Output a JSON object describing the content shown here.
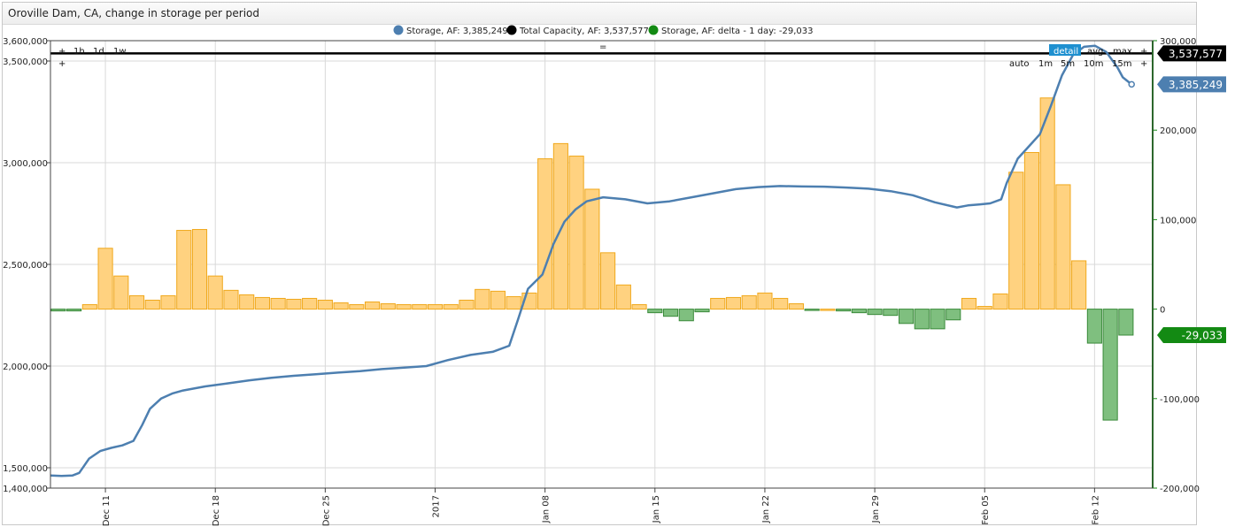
{
  "widget": {
    "title": "Oroville Dam, CA, change in storage per period"
  },
  "controls": {
    "left": [
      "+",
      "1h",
      "1d",
      "1w"
    ],
    "left_row2": "+",
    "center": "=",
    "right_row1": [
      "detail",
      "avg",
      "max",
      "+"
    ],
    "right_row2": [
      "auto",
      "1m",
      "5m",
      "10m",
      "15m",
      "+"
    ]
  },
  "colors": {
    "storage": "#4d7fb0",
    "capacity": "#000000",
    "delta_pos": "#ffd280",
    "delta_pos_border": "#f0a81c",
    "delta_neg": "#7fbf7f",
    "delta_neg_border": "#3a8a3a",
    "right_axis": "#138a13"
  },
  "chart_data": {
    "type": "bar",
    "x_tick_labels": [
      "Dec 11",
      "Dec 18",
      "Dec 25",
      "2017",
      "Jan 08",
      "Jan 15",
      "Jan 22",
      "Jan 29",
      "Feb 05",
      "Feb 12"
    ],
    "left_axis": {
      "ylim": [
        1400000,
        3600000
      ],
      "tick_labels": [
        "3,600,000",
        "3,500,000",
        "3,000,000",
        "2,500,000",
        "2,000,000",
        "1,500,000",
        "1,400,000"
      ]
    },
    "right_axis": {
      "ylim": [
        -200000,
        300000
      ],
      "tick_labels": [
        "300,000",
        "200,000",
        "100,000",
        "0",
        "-100,000",
        "-200,000"
      ]
    },
    "legend": [
      {
        "name": "Storage, AF: 3,385,249",
        "color": "#4d7fb0"
      },
      {
        "name": "Total Capacity, AF: 3,537,577",
        "color": "#000000"
      },
      {
        "name": "Storage, AF: delta - 1 day: -29,033",
        "color": "#138a13"
      }
    ],
    "badges": {
      "capacity": "3,537,577",
      "storage": "3,385,249",
      "delta": "-29,033"
    },
    "capacity_value": 3537577,
    "delta_daily": [
      -2000,
      -2000,
      5000,
      68000,
      37000,
      15000,
      10000,
      15000,
      88000,
      89000,
      37000,
      21000,
      16000,
      13000,
      12000,
      11000,
      12000,
      10000,
      7000,
      5000,
      8000,
      6000,
      5000,
      5000,
      5000,
      5000,
      10000,
      22000,
      20000,
      14000,
      18000,
      168000,
      185000,
      171000,
      134000,
      63000,
      27000,
      5000,
      -4000,
      -8000,
      -13000,
      -3000,
      12000,
      13000,
      15000,
      18000,
      12000,
      6000,
      -1000,
      0,
      -2000,
      -4000,
      -6000,
      -7000,
      -16000,
      -22000,
      -22000,
      -12000,
      12000,
      3000,
      17000,
      153000,
      175000,
      236000,
      139000,
      54000,
      -38000,
      -124000,
      -29033
    ],
    "storage_series": [
      [
        0,
        1462000
      ],
      [
        1,
        1460000
      ],
      [
        2,
        1462000
      ],
      [
        2.6,
        1475000
      ],
      [
        3.5,
        1545000
      ],
      [
        4.5,
        1582000
      ],
      [
        5.5,
        1598000
      ],
      [
        6.5,
        1610000
      ],
      [
        7.5,
        1632000
      ],
      [
        8.3,
        1710000
      ],
      [
        9.0,
        1790000
      ],
      [
        10,
        1840000
      ],
      [
        11,
        1865000
      ],
      [
        12,
        1880000
      ],
      [
        14,
        1900000
      ],
      [
        16,
        1915000
      ],
      [
        18,
        1930000
      ],
      [
        20,
        1942000
      ],
      [
        22,
        1952000
      ],
      [
        24,
        1960000
      ],
      [
        26,
        1968000
      ],
      [
        28,
        1975000
      ],
      [
        30,
        1985000
      ],
      [
        32,
        1992000
      ],
      [
        34,
        2000000
      ],
      [
        36,
        2030000
      ],
      [
        38,
        2055000
      ],
      [
        40,
        2070000
      ],
      [
        41.5,
        2100000
      ],
      [
        42.3,
        2230000
      ],
      [
        43.2,
        2380000
      ],
      [
        44.5,
        2450000
      ],
      [
        45.5,
        2600000
      ],
      [
        46.5,
        2710000
      ],
      [
        47.5,
        2770000
      ],
      [
        48.5,
        2810000
      ],
      [
        50,
        2830000
      ],
      [
        52,
        2820000
      ],
      [
        54,
        2800000
      ],
      [
        56,
        2810000
      ],
      [
        58,
        2830000
      ],
      [
        60,
        2850000
      ],
      [
        62,
        2870000
      ],
      [
        64,
        2880000
      ],
      [
        66,
        2885000
      ],
      [
        68,
        2883000
      ],
      [
        70,
        2882000
      ],
      [
        72,
        2878000
      ],
      [
        74,
        2872000
      ],
      [
        76,
        2860000
      ],
      [
        78,
        2840000
      ],
      [
        80,
        2805000
      ],
      [
        82,
        2780000
      ],
      [
        83,
        2790000
      ],
      [
        84,
        2795000
      ],
      [
        85,
        2800000
      ],
      [
        86,
        2820000
      ],
      [
        86.5,
        2900000
      ],
      [
        87.5,
        3020000
      ],
      [
        88.5,
        3080000
      ],
      [
        89.5,
        3140000
      ],
      [
        90.5,
        3280000
      ],
      [
        91.5,
        3430000
      ],
      [
        92.5,
        3530000
      ],
      [
        93.5,
        3570000
      ],
      [
        94.5,
        3575000
      ],
      [
        95.5,
        3545000
      ],
      [
        96.5,
        3470000
      ],
      [
        97,
        3420000
      ],
      [
        97.8,
        3385249
      ]
    ],
    "storage_x_max": 97.8
  }
}
